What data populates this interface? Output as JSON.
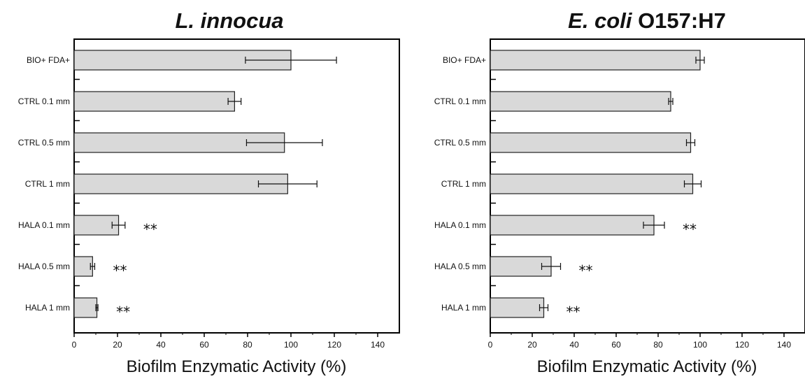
{
  "chart_data": [
    {
      "type": "bar",
      "orientation": "horizontal",
      "title_parts": [
        {
          "text": "L. innocua",
          "italic": true
        }
      ],
      "categories": [
        "BIO+ FDA+",
        "CTRL 0.1 mm",
        "CTRL 0.5 mm",
        "CTRL 1 mm",
        "HALA 0.1 mm",
        "HALA 0.5 mm",
        "HALA 1 mm"
      ],
      "values": [
        100,
        74,
        97,
        98.5,
        20.5,
        8.5,
        10.5
      ],
      "errors": [
        21,
        3,
        17.5,
        13.5,
        3,
        1,
        0.5
      ],
      "annotations": [
        "",
        "",
        "",
        "",
        "**",
        "**",
        "**"
      ],
      "xlabel": "Biofilm Enzymatic Activity (%)",
      "xlim": [
        0,
        150
      ],
      "xticks": [
        0,
        20,
        40,
        60,
        80,
        100,
        120,
        140
      ],
      "bar_color": "#d9d9d9",
      "grid": false,
      "legend": "none"
    },
    {
      "type": "bar",
      "orientation": "horizontal",
      "title_parts": [
        {
          "text": "E. coli",
          "italic": true
        },
        {
          "text": " O157:H7",
          "italic": false
        }
      ],
      "categories": [
        "BIO+ FDA+",
        "CTRL 0.1 mm",
        "CTRL 0.5 mm",
        "CTRL 1 mm",
        "HALA 0.1 mm",
        "HALA 0.5 mm",
        "HALA 1 mm"
      ],
      "values": [
        100,
        86,
        95.5,
        96.5,
        78,
        29,
        25.5
      ],
      "errors": [
        2,
        1,
        2,
        4,
        5,
        4.5,
        2
      ],
      "annotations": [
        "",
        "",
        "",
        "",
        "**",
        "**",
        "**"
      ],
      "xlabel": "Biofilm Enzymatic Activity (%)",
      "xlim": [
        0,
        150
      ],
      "xticks": [
        0,
        20,
        40,
        60,
        80,
        100,
        120,
        140
      ],
      "bar_color": "#d9d9d9",
      "grid": false,
      "legend": "none"
    }
  ]
}
